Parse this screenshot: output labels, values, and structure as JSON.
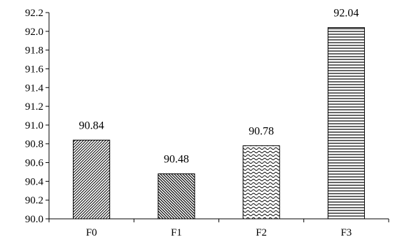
{
  "chart_data": {
    "type": "bar",
    "title": "",
    "xlabel": "",
    "ylabel": "",
    "categories": [
      "F0",
      "F1",
      "F2",
      "F3"
    ],
    "values": [
      90.84,
      90.48,
      90.78,
      92.04
    ],
    "value_labels": [
      "90.84",
      "90.48",
      "90.78",
      "92.04"
    ],
    "ylim": [
      90.0,
      92.2
    ],
    "yticks": [
      "90.0",
      "90.2",
      "90.4",
      "90.6",
      "90.8",
      "91.0",
      "91.2",
      "91.4",
      "91.6",
      "91.8",
      "92.0",
      "92.2"
    ],
    "grid": false,
    "legend": "none",
    "bar_patterns": [
      "diagonal-dense",
      "diagonal-wide",
      "wave",
      "horizontal"
    ],
    "colors": {
      "bar_fill": "#ffffff",
      "bar_stroke": "#000000",
      "axis": "#000000"
    }
  }
}
